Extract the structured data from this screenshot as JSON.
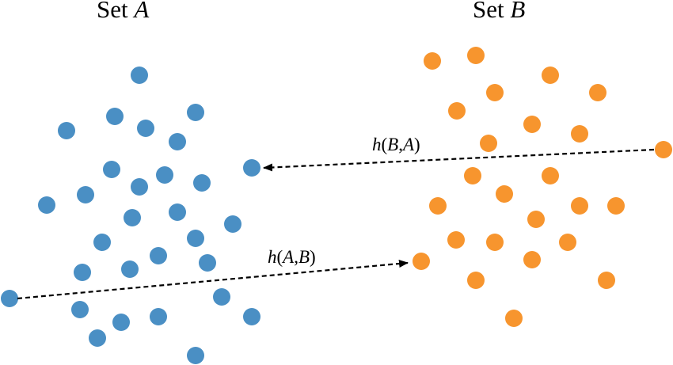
{
  "titles": {
    "set_a": {
      "prefix": "Set ",
      "var": "A"
    },
    "set_b": {
      "prefix": "Set ",
      "var": "B"
    }
  },
  "colors": {
    "set_a": "#4a8fc4",
    "set_b": "#f7952e",
    "arrow": "#000000"
  },
  "labels": {
    "h_ba": {
      "fn": "h",
      "open": "(",
      "a1": "B",
      "comma": ",",
      "a2": "A",
      "close": ")"
    },
    "h_ab": {
      "fn": "h",
      "open": "(",
      "a1": "A",
      "comma": ",",
      "a2": "B",
      "close": ")"
    }
  }
}
